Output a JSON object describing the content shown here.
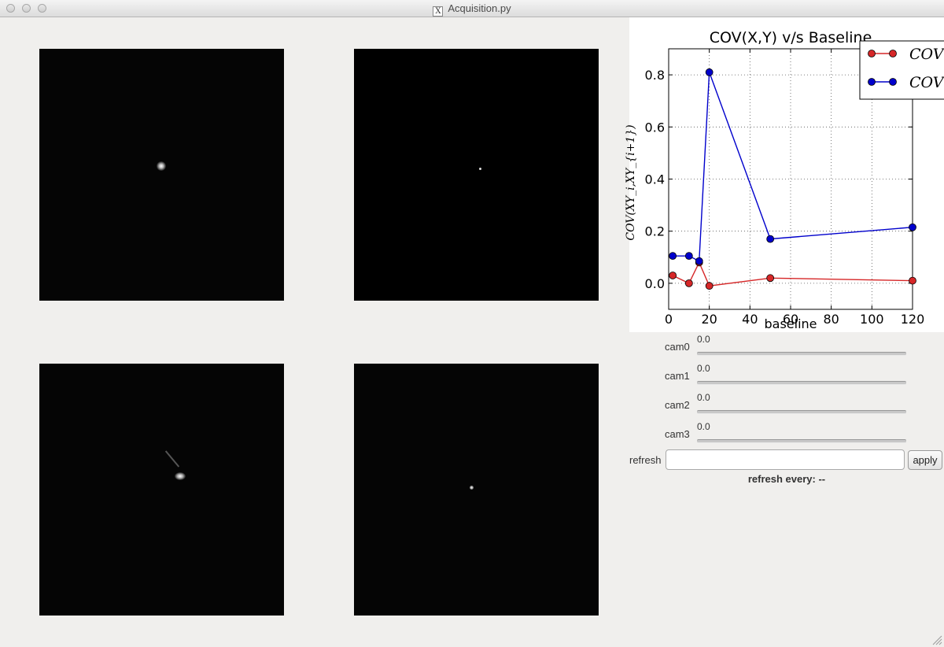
{
  "window": {
    "title": "Acquisition.py",
    "title_icon": "X"
  },
  "cameras": [
    {
      "name": "camera-view-0"
    },
    {
      "name": "camera-view-1"
    },
    {
      "name": "camera-view-2"
    },
    {
      "name": "camera-view-3"
    }
  ],
  "controls": {
    "sliders": [
      {
        "label": "cam0",
        "value": "0.0"
      },
      {
        "label": "cam1",
        "value": "0.0"
      },
      {
        "label": "cam2",
        "value": "0.0"
      },
      {
        "label": "cam3",
        "value": "0.0"
      }
    ],
    "refresh_label": "refresh",
    "refresh_value": "",
    "apply_label": "apply",
    "refresh_status": "refresh every: --"
  },
  "chart_data": {
    "type": "line",
    "title": "COV(X,Y) v/s Baseline",
    "xlabel": "baseline",
    "ylabel": "COV(XY_i,XY_{i+1})",
    "xlim": [
      0,
      120
    ],
    "ylim": [
      -0.1,
      0.9
    ],
    "xticks": [
      0,
      20,
      40,
      60,
      80,
      100,
      120
    ],
    "yticks": [
      0.0,
      0.2,
      0.4,
      0.6,
      0.8
    ],
    "grid": true,
    "legend_position": "top-right",
    "series": [
      {
        "name": "COV",
        "color": "#d62728",
        "x": [
          2,
          10,
          15,
          20,
          50,
          120
        ],
        "y": [
          0.03,
          0.0,
          0.08,
          -0.01,
          0.02,
          0.01
        ]
      },
      {
        "name": "COV",
        "color": "#0000cc",
        "x": [
          2,
          10,
          15,
          20,
          50,
          120
        ],
        "y": [
          0.105,
          0.105,
          0.085,
          0.81,
          0.17,
          0.215
        ]
      }
    ]
  }
}
